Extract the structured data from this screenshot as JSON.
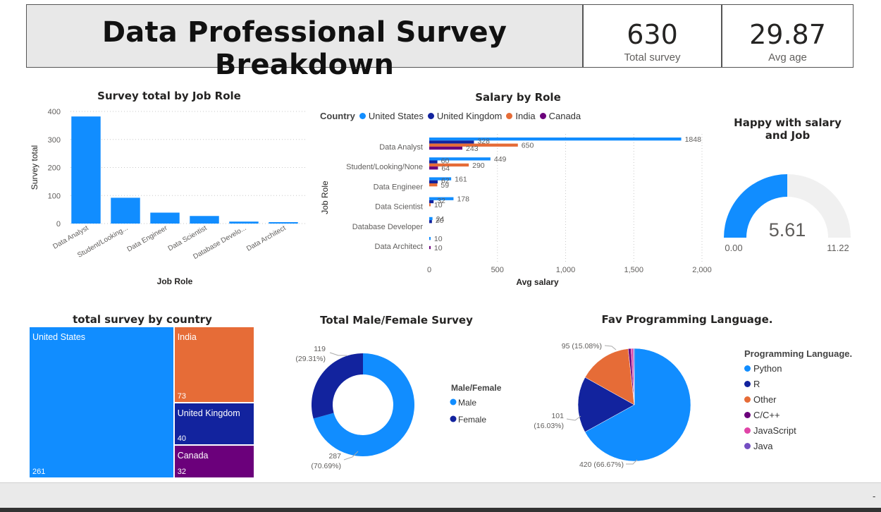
{
  "header": {
    "title": "Data Professional Survey Breakdown"
  },
  "kpis": {
    "total": {
      "value": "630",
      "label": "Total survey"
    },
    "age": {
      "value": "29.87",
      "label": "Avg age"
    }
  },
  "colors": {
    "us": "#118DFF",
    "uk": "#12239E",
    "india": "#E66C37",
    "canada": "#6B007B",
    "pink": "#E044A7",
    "java": "#744EC2",
    "gauge_bg": "#F0F0F0"
  },
  "chart_data": [
    {
      "id": "job_role",
      "type": "bar",
      "title": "Survey total by Job Role",
      "xlabel": "Job Role",
      "ylabel": "Survey total",
      "categories": [
        "Data Analyst",
        "Student/Looking...",
        "Data Engineer",
        "Data Scientist",
        "Database Develo...",
        "Data Architect"
      ],
      "values": [
        382,
        92,
        39,
        27,
        7,
        5
      ],
      "ylim": [
        0,
        400
      ],
      "yticks": [
        0,
        100,
        200,
        300,
        400
      ],
      "grid": true
    },
    {
      "id": "salary_role",
      "type": "bar",
      "orientation": "horizontal",
      "title": "Salary by Role",
      "xlabel": "Avg salary",
      "ylabel": "Job Role",
      "legend_title": "Country",
      "categories": [
        "Data Analyst",
        "Student/Looking/None",
        "Data Engineer",
        "Data Scientist",
        "Database Developer",
        "Data Architect"
      ],
      "series": [
        {
          "name": "United States",
          "values": [
            1848,
            449,
            161,
            178,
            24,
            10
          ]
        },
        {
          "name": "United Kingdom",
          "values": [
            328,
            60,
            62,
            32,
            20,
            null
          ]
        },
        {
          "name": "India",
          "values": [
            650,
            290,
            59,
            10,
            null,
            null
          ]
        },
        {
          "name": "Canada",
          "values": [
            243,
            64,
            null,
            null,
            null,
            10
          ]
        }
      ],
      "xlim": [
        0,
        2000
      ],
      "xticks": [
        "0",
        "500",
        "1,000",
        "1,500",
        "2,000"
      ]
    },
    {
      "id": "happy_gauge",
      "type": "gauge",
      "title": "Happy with salary and Job",
      "value": 5.61,
      "min_label": "0.00",
      "max_label": "11.22",
      "value_label": "5.61",
      "min": 0,
      "max": 11.22
    },
    {
      "id": "country_treemap",
      "type": "treemap",
      "title": "total survey by country",
      "items": [
        {
          "name": "United States",
          "value": 261
        },
        {
          "name": "India",
          "value": 73
        },
        {
          "name": "United Kingdom",
          "value": 40
        },
        {
          "name": "Canada",
          "value": 32
        }
      ]
    },
    {
      "id": "gender_donut",
      "type": "pie",
      "style": "donut",
      "title": "Total Male/Female Survey",
      "legend_title": "Male/Female",
      "series": [
        {
          "name": "Male",
          "value": 287,
          "label_value": "287",
          "label_pct": "(70.69%)"
        },
        {
          "name": "Female",
          "value": 119,
          "label_value": "119",
          "label_pct": "(29.31%)"
        }
      ]
    },
    {
      "id": "lang_pie",
      "type": "pie",
      "title": "Fav Programming Language.",
      "legend_title": "Programming Language.",
      "series": [
        {
          "name": "Python",
          "value": 420,
          "label": "420 (66.67%)"
        },
        {
          "name": "R",
          "value": 101,
          "label": "101 (16.03%)"
        },
        {
          "name": "Other",
          "value": 95,
          "label": "95 (15.08%)"
        },
        {
          "name": "C/C++",
          "value": 5
        },
        {
          "name": "JavaScript",
          "value": 4
        },
        {
          "name": "Java",
          "value": 2
        }
      ]
    }
  ]
}
